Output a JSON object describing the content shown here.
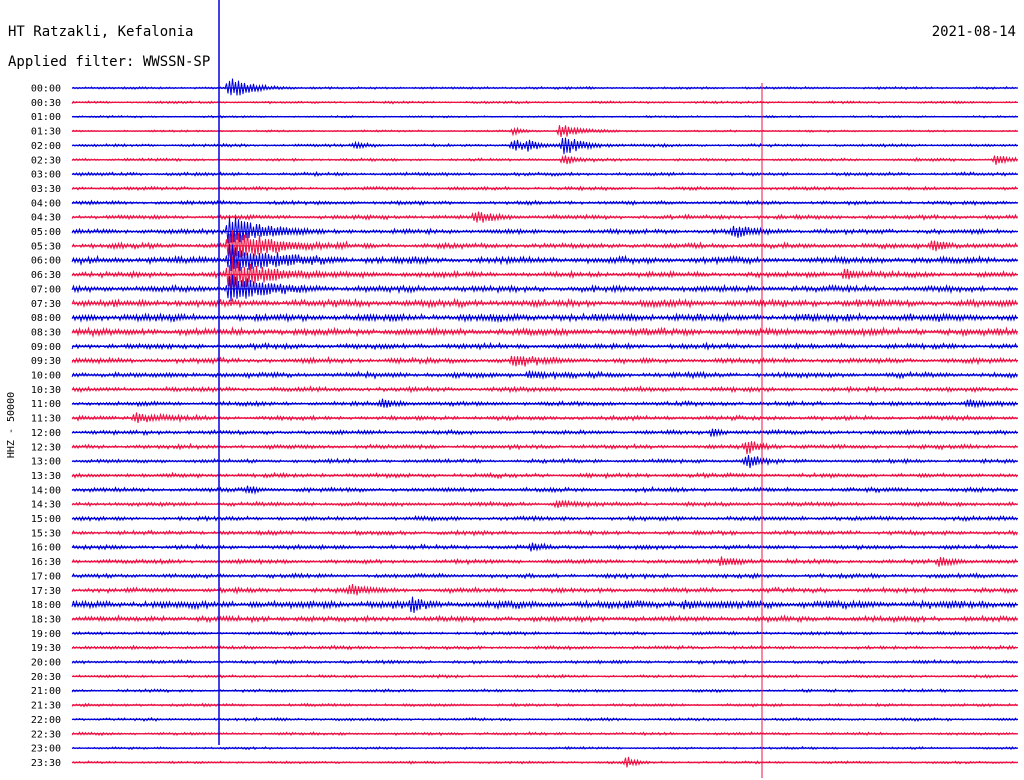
{
  "header": {
    "station": "HT Ratzakli, Kefalonia",
    "date": "2021-08-14",
    "filter": "Applied filter: WWSSN-SP"
  },
  "chart_data": {
    "type": "line",
    "title": "HT Ratzakli, Kefalonia",
    "subtitle": "Applied filter: WWSSN-SP",
    "date": "2021-08-14",
    "ylabel": "HHZ - 50000",
    "xlabel": "",
    "row_times": [
      "00:00",
      "00:30",
      "01:00",
      "01:30",
      "02:00",
      "02:30",
      "03:00",
      "03:30",
      "04:00",
      "04:30",
      "05:00",
      "05:30",
      "06:00",
      "06:30",
      "07:00",
      "07:30",
      "08:00",
      "08:30",
      "09:00",
      "09:30",
      "10:00",
      "10:30",
      "11:00",
      "11:30",
      "12:00",
      "12:30",
      "13:00",
      "13:30",
      "14:00",
      "14:30",
      "15:00",
      "15:30",
      "16:00",
      "16:30",
      "17:00",
      "17:30",
      "18:00",
      "18:30",
      "19:00",
      "19:30",
      "20:00",
      "20:30",
      "21:00",
      "21:30",
      "22:00",
      "22:30",
      "23:00",
      "23:30"
    ],
    "row_colors": [
      "#0000dd",
      "#ee1144"
    ],
    "row_noise_level": [
      0.25,
      0.25,
      0.2,
      0.2,
      0.3,
      0.3,
      0.35,
      0.35,
      0.4,
      0.45,
      0.5,
      0.55,
      0.7,
      0.6,
      0.65,
      0.75,
      0.8,
      0.75,
      0.55,
      0.55,
      0.55,
      0.5,
      0.45,
      0.45,
      0.45,
      0.45,
      0.4,
      0.45,
      0.45,
      0.45,
      0.45,
      0.45,
      0.45,
      0.45,
      0.45,
      0.5,
      0.8,
      0.6,
      0.35,
      0.35,
      0.35,
      0.3,
      0.3,
      0.3,
      0.3,
      0.3,
      0.25,
      0.25
    ],
    "events": [
      {
        "row": 0,
        "minute": 5.0,
        "amp": 3.2,
        "dur": 1.4
      },
      {
        "row": 10,
        "minute": 5.0,
        "amp": 5.5,
        "dur": 2.0
      },
      {
        "row": 11,
        "minute": 5.0,
        "amp": 6.0,
        "dur": 2.5
      },
      {
        "row": 12,
        "minute": 5.0,
        "amp": 5.0,
        "dur": 2.5
      },
      {
        "row": 13,
        "minute": 5.0,
        "amp": 5.0,
        "dur": 2.5
      },
      {
        "row": 14,
        "minute": 5.0,
        "amp": 4.5,
        "dur": 2.0
      },
      {
        "row": 4,
        "minute": 14.5,
        "amp": 1.4,
        "dur": 0.6
      },
      {
        "row": 4,
        "minute": 14.0,
        "amp": 1.8,
        "dur": 1.0
      },
      {
        "row": 3,
        "minute": 14.0,
        "amp": 1.2,
        "dur": 0.6
      },
      {
        "row": 3,
        "minute": 15.5,
        "amp": 2.3,
        "dur": 1.2
      },
      {
        "row": 4,
        "minute": 15.6,
        "amp": 3.0,
        "dur": 1.2
      },
      {
        "row": 5,
        "minute": 15.6,
        "amp": 1.5,
        "dur": 0.8
      },
      {
        "row": 4,
        "minute": 9.0,
        "amp": 1.0,
        "dur": 0.8
      },
      {
        "row": 5,
        "minute": 29.3,
        "amp": 1.6,
        "dur": 0.8
      },
      {
        "row": 9,
        "minute": 12.8,
        "amp": 1.8,
        "dur": 1.2
      },
      {
        "row": 10,
        "minute": 21.0,
        "amp": 1.8,
        "dur": 1.2
      },
      {
        "row": 11,
        "minute": 27.3,
        "amp": 1.5,
        "dur": 1.0
      },
      {
        "row": 13,
        "minute": 24.5,
        "amp": 1.5,
        "dur": 1.0
      },
      {
        "row": 19,
        "minute": 14.0,
        "amp": 1.8,
        "dur": 1.6
      },
      {
        "row": 20,
        "minute": 14.5,
        "amp": 1.3,
        "dur": 1.0
      },
      {
        "row": 23,
        "minute": 2.0,
        "amp": 1.6,
        "dur": 1.5
      },
      {
        "row": 22,
        "minute": 9.8,
        "amp": 1.2,
        "dur": 1.0
      },
      {
        "row": 22,
        "minute": 28.4,
        "amp": 1.2,
        "dur": 1.0
      },
      {
        "row": 25,
        "minute": 21.4,
        "amp": 2.5,
        "dur": 0.8
      },
      {
        "row": 26,
        "minute": 21.4,
        "amp": 2.5,
        "dur": 0.8
      },
      {
        "row": 24,
        "minute": 20.3,
        "amp": 1.0,
        "dur": 0.8
      },
      {
        "row": 28,
        "minute": 5.6,
        "amp": 1.2,
        "dur": 0.8
      },
      {
        "row": 29,
        "minute": 15.4,
        "amp": 1.3,
        "dur": 0.8
      },
      {
        "row": 32,
        "minute": 14.6,
        "amp": 1.2,
        "dur": 0.6
      },
      {
        "row": 33,
        "minute": 20.6,
        "amp": 1.5,
        "dur": 1.2
      },
      {
        "row": 33,
        "minute": 27.5,
        "amp": 1.4,
        "dur": 1.0
      },
      {
        "row": 35,
        "minute": 8.8,
        "amp": 1.6,
        "dur": 1.2
      },
      {
        "row": 36,
        "minute": 10.8,
        "amp": 2.0,
        "dur": 0.6
      },
      {
        "row": 36,
        "minute": 19.4,
        "amp": 1.2,
        "dur": 0.8
      },
      {
        "row": 47,
        "minute": 17.6,
        "amp": 1.8,
        "dur": 0.5
      }
    ]
  }
}
